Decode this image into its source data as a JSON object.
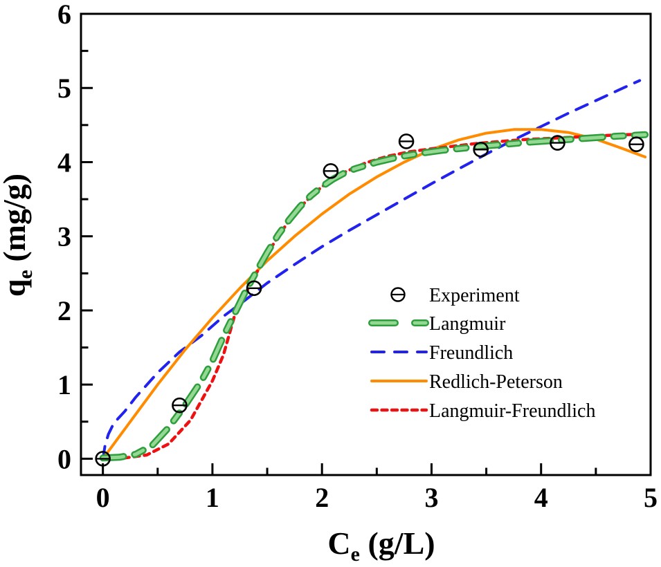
{
  "chart_data": {
    "type": "scatter",
    "title": "",
    "xlabel": {
      "symbol": "C",
      "subscript": "e",
      "unit": " (g/L)"
    },
    "ylabel": {
      "symbol": "q",
      "subscript": "e",
      "unit": " (mg/g)"
    },
    "xlim": [
      -0.2,
      5.0
    ],
    "ylim": [
      -0.22,
      6.0
    ],
    "x_major_ticks": [
      0,
      1,
      2,
      3,
      4,
      5
    ],
    "y_major_ticks": [
      0,
      1,
      2,
      3,
      4,
      5,
      6
    ],
    "x_minor_ticks": [
      0.5,
      1.5,
      2.5,
      3.5,
      4.5
    ],
    "y_minor_ticks": [
      0.5,
      1.5,
      2.5,
      3.5,
      4.5,
      5.5
    ],
    "grid": false,
    "frame_color": "#000000",
    "legend_position": "inside lower-right",
    "series": [
      {
        "name": "Experiment",
        "kind": "scatter",
        "marker": "open-circle-hbar",
        "color": "#000000",
        "points": [
          [
            0.0,
            0.0
          ],
          [
            0.7,
            0.72
          ],
          [
            1.38,
            2.3
          ],
          [
            2.08,
            3.88
          ],
          [
            2.77,
            4.28
          ],
          [
            3.45,
            4.17
          ],
          [
            4.15,
            4.26
          ],
          [
            4.87,
            4.24
          ]
        ]
      },
      {
        "name": "Freundlich",
        "kind": "line",
        "line_style": "dashed",
        "color": "#2222ee",
        "points": [
          [
            0,
            0
          ],
          [
            0.02,
            0.18
          ],
          [
            0.05,
            0.33
          ],
          [
            0.1,
            0.48
          ],
          [
            0.2,
            0.64
          ],
          [
            0.3,
            0.83
          ],
          [
            0.5,
            1.16
          ],
          [
            0.7,
            1.44
          ],
          [
            0.9,
            1.66
          ],
          [
            1.1,
            1.92
          ],
          [
            1.3,
            2.14
          ],
          [
            1.5,
            2.37
          ],
          [
            1.75,
            2.62
          ],
          [
            2.0,
            2.86
          ],
          [
            2.25,
            3.08
          ],
          [
            2.5,
            3.29
          ],
          [
            2.75,
            3.5
          ],
          [
            3.0,
            3.71
          ],
          [
            3.25,
            3.91
          ],
          [
            3.5,
            4.11
          ],
          [
            3.75,
            4.3
          ],
          [
            4.0,
            4.48
          ],
          [
            4.25,
            4.66
          ],
          [
            4.5,
            4.83
          ],
          [
            4.75,
            5.0
          ],
          [
            4.9,
            5.1
          ]
        ]
      },
      {
        "name": "Redlich-Peterson",
        "kind": "line",
        "line_style": "solid",
        "color": "#ff8c00",
        "points": [
          [
            0,
            0
          ],
          [
            0.25,
            0.5
          ],
          [
            0.5,
            1.0
          ],
          [
            0.75,
            1.47
          ],
          [
            1.0,
            1.9
          ],
          [
            1.25,
            2.3
          ],
          [
            1.5,
            2.67
          ],
          [
            1.75,
            3.0
          ],
          [
            2.0,
            3.3
          ],
          [
            2.25,
            3.57
          ],
          [
            2.5,
            3.8
          ],
          [
            2.75,
            4.0
          ],
          [
            3.0,
            4.17
          ],
          [
            3.25,
            4.3
          ],
          [
            3.5,
            4.39
          ],
          [
            3.75,
            4.44
          ],
          [
            4.0,
            4.44
          ],
          [
            4.25,
            4.4
          ],
          [
            4.5,
            4.31
          ],
          [
            4.75,
            4.18
          ],
          [
            4.95,
            4.07
          ]
        ]
      },
      {
        "name": "Langmuir-Freundlich",
        "kind": "line",
        "line_style": "dotted",
        "color": "#ee1111",
        "points": [
          [
            0,
            0.0
          ],
          [
            0.2,
            0.01
          ],
          [
            0.4,
            0.05
          ],
          [
            0.6,
            0.2
          ],
          [
            0.8,
            0.52
          ],
          [
            1.0,
            1.05
          ],
          [
            1.1,
            1.4
          ],
          [
            1.2,
            1.92
          ],
          [
            1.3,
            2.22
          ],
          [
            1.4,
            2.5
          ],
          [
            1.5,
            2.76
          ],
          [
            1.6,
            3.0
          ],
          [
            1.7,
            3.21
          ],
          [
            1.8,
            3.39
          ],
          [
            1.9,
            3.54
          ],
          [
            2.0,
            3.67
          ],
          [
            2.2,
            3.86
          ],
          [
            2.4,
            3.99
          ],
          [
            2.6,
            4.08
          ],
          [
            2.8,
            4.14
          ],
          [
            3.0,
            4.18
          ],
          [
            3.4,
            4.25
          ],
          [
            3.8,
            4.3
          ],
          [
            4.2,
            4.33
          ],
          [
            4.6,
            4.36
          ],
          [
            4.95,
            4.38
          ]
        ]
      },
      {
        "name": "Langmuir",
        "kind": "line",
        "line_style": "long-short-dash",
        "color": "#2e9e3c",
        "color_inner": "#94d894",
        "points": [
          [
            0,
            0.01
          ],
          [
            0.15,
            0.02
          ],
          [
            0.3,
            0.06
          ],
          [
            0.45,
            0.18
          ],
          [
            0.6,
            0.42
          ],
          [
            0.75,
            0.72
          ],
          [
            0.9,
            1.05
          ],
          [
            1.0,
            1.32
          ],
          [
            1.1,
            1.65
          ],
          [
            1.2,
            1.95
          ],
          [
            1.3,
            2.25
          ],
          [
            1.4,
            2.52
          ],
          [
            1.5,
            2.78
          ],
          [
            1.6,
            3.02
          ],
          [
            1.7,
            3.22
          ],
          [
            1.8,
            3.4
          ],
          [
            1.9,
            3.55
          ],
          [
            2.0,
            3.67
          ],
          [
            2.1,
            3.77
          ],
          [
            2.2,
            3.85
          ],
          [
            2.3,
            3.91
          ],
          [
            2.5,
            4.0
          ],
          [
            2.7,
            4.07
          ],
          [
            2.9,
            4.12
          ],
          [
            3.1,
            4.16
          ],
          [
            3.5,
            4.22
          ],
          [
            3.9,
            4.27
          ],
          [
            4.3,
            4.31
          ],
          [
            4.7,
            4.35
          ],
          [
            4.95,
            4.37
          ]
        ]
      }
    ],
    "legend_order": [
      "Experiment",
      "Langmuir",
      "Freundlich",
      "Redlich-Peterson",
      "Langmuir-Freundlich"
    ]
  }
}
